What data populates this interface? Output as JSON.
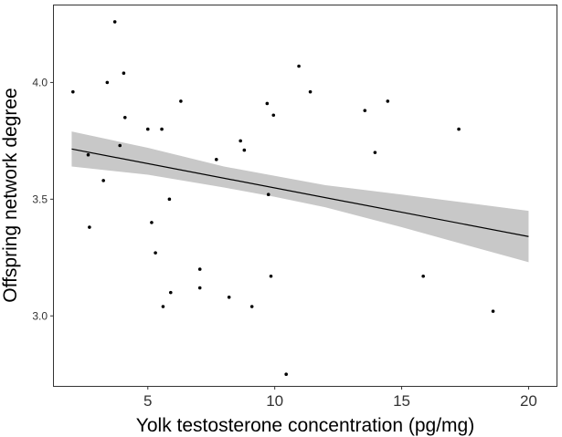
{
  "chart_data": {
    "type": "scatter",
    "title": "",
    "xlabel": "Yolk testosterone concentration (pg/mg)",
    "ylabel": "Offspring network degree",
    "xlim": [
      1.3,
      21.1
    ],
    "ylim": [
      2.7,
      4.33
    ],
    "x_ticks": [
      5,
      10,
      15,
      20
    ],
    "x_tick_labels": [
      "5",
      "10",
      "15",
      "20"
    ],
    "y_ticks": [
      3.0,
      3.5,
      4.0
    ],
    "y_tick_labels": [
      "3.0",
      "3.5",
      "4.0"
    ],
    "grid": false,
    "colors": {
      "points": "#000000",
      "fit_line": "#000000",
      "confidence_band": "#c8c8c8",
      "axis": "#333333"
    },
    "points": [
      {
        "x": 2.05,
        "y": 3.96
      },
      {
        "x": 2.65,
        "y": 3.69
      },
      {
        "x": 2.7,
        "y": 3.38
      },
      {
        "x": 3.25,
        "y": 3.58
      },
      {
        "x": 3.4,
        "y": 4.0
      },
      {
        "x": 3.7,
        "y": 4.26
      },
      {
        "x": 3.9,
        "y": 3.73
      },
      {
        "x": 4.05,
        "y": 4.04
      },
      {
        "x": 4.1,
        "y": 3.85
      },
      {
        "x": 5.0,
        "y": 3.8
      },
      {
        "x": 5.15,
        "y": 3.4
      },
      {
        "x": 5.3,
        "y": 3.27
      },
      {
        "x": 5.55,
        "y": 3.8
      },
      {
        "x": 5.6,
        "y": 3.04
      },
      {
        "x": 5.85,
        "y": 3.5
      },
      {
        "x": 5.9,
        "y": 3.1
      },
      {
        "x": 6.3,
        "y": 3.92
      },
      {
        "x": 7.05,
        "y": 3.2
      },
      {
        "x": 7.05,
        "y": 3.12
      },
      {
        "x": 7.7,
        "y": 3.67
      },
      {
        "x": 8.2,
        "y": 3.08
      },
      {
        "x": 8.65,
        "y": 3.75
      },
      {
        "x": 8.8,
        "y": 3.71
      },
      {
        "x": 9.1,
        "y": 3.04
      },
      {
        "x": 9.7,
        "y": 3.91
      },
      {
        "x": 9.75,
        "y": 3.52
      },
      {
        "x": 9.85,
        "y": 3.17
      },
      {
        "x": 9.95,
        "y": 3.86
      },
      {
        "x": 10.45,
        "y": 2.75
      },
      {
        "x": 10.95,
        "y": 4.07
      },
      {
        "x": 11.4,
        "y": 3.96
      },
      {
        "x": 13.55,
        "y": 3.88
      },
      {
        "x": 13.95,
        "y": 3.7
      },
      {
        "x": 14.45,
        "y": 3.92
      },
      {
        "x": 15.85,
        "y": 3.17
      },
      {
        "x": 17.25,
        "y": 3.8
      },
      {
        "x": 18.6,
        "y": 3.02
      }
    ],
    "fit_line": {
      "x": [
        2.0,
        20.0
      ],
      "y": [
        3.715,
        3.34
      ]
    },
    "confidence_band": {
      "x": [
        2.0,
        5.0,
        8.0,
        10.0,
        12.0,
        15.0,
        20.0
      ],
      "lower": [
        3.64,
        3.605,
        3.55,
        3.51,
        3.465,
        3.38,
        3.23
      ],
      "upper": [
        3.79,
        3.72,
        3.64,
        3.6,
        3.56,
        3.52,
        3.45
      ]
    }
  }
}
